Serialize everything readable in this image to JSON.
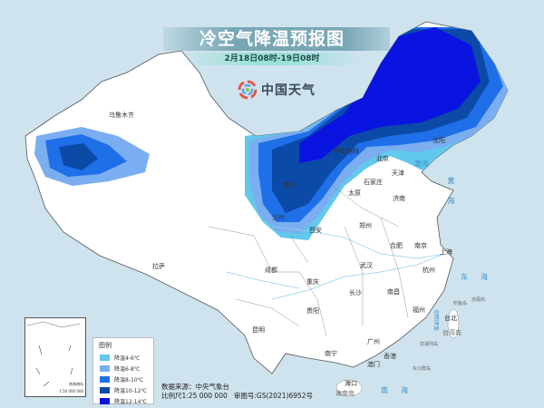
{
  "header": {
    "title": "冷空气降温预报图",
    "subtitle": "2月18日08时-19日08时",
    "brand": "中国天气"
  },
  "cities": [
    {
      "name": "乌鲁木齐"
    },
    {
      "name": "拉萨"
    },
    {
      "name": "成都"
    },
    {
      "name": "重庆"
    },
    {
      "name": "贵阳"
    },
    {
      "name": "昆明"
    },
    {
      "name": "南宁"
    },
    {
      "name": "广州"
    },
    {
      "name": "香港"
    },
    {
      "name": "澳门"
    },
    {
      "name": "海口"
    },
    {
      "name": "长沙"
    },
    {
      "name": "武汉"
    },
    {
      "name": "南昌"
    },
    {
      "name": "福州"
    },
    {
      "name": "台北"
    },
    {
      "name": "杭州"
    },
    {
      "name": "上海"
    },
    {
      "name": "南京"
    },
    {
      "name": "合肥"
    },
    {
      "name": "郑州"
    },
    {
      "name": "西安"
    },
    {
      "name": "兰州"
    },
    {
      "name": "太原"
    },
    {
      "name": "石家庄"
    },
    {
      "name": "济南"
    },
    {
      "name": "天津"
    },
    {
      "name": "北京"
    },
    {
      "name": "沈阳"
    },
    {
      "name": "呼和浩特"
    },
    {
      "name": "银川"
    }
  ],
  "places": {
    "taiwan_island": "台湾岛",
    "hainan_island": "海南岛",
    "diaoyu": "钓鱼岛",
    "chiwei": "赤尾屿",
    "penghu": "澎湖列岛",
    "dongsha": "东沙群岛"
  },
  "seas": {
    "bohai": "渤海",
    "huanghai": "黄海",
    "donghai": "东海",
    "nanhai": "南海",
    "strait": "台湾海峡"
  },
  "legend": {
    "title": "图例",
    "items": [
      {
        "label": "降温4-6℃",
        "color": "#62c8ec"
      },
      {
        "label": "降温6-8℃",
        "color": "#7aaef0"
      },
      {
        "label": "降温8-10℃",
        "color": "#1f6fe8"
      },
      {
        "label": "降温10-12℃",
        "color": "#0c4aa8"
      },
      {
        "label": "降温12-14℃",
        "color": "#0a14e0"
      }
    ]
  },
  "inset": {
    "label": "南海诸岛",
    "scale": "1:50 000 000"
  },
  "footer": {
    "source": "数据来源：中央气象台",
    "scale": "比例尺1:25 000 000",
    "review": "审图号:GS(2021)6952号"
  }
}
